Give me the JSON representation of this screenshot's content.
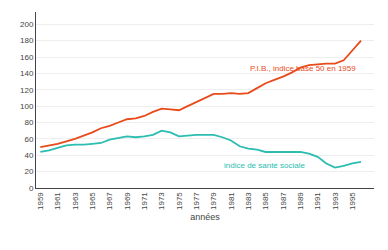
{
  "chart_data": {
    "type": "line",
    "x": [
      1959,
      1960,
      1961,
      1962,
      1963,
      1964,
      1965,
      1966,
      1967,
      1968,
      1969,
      1970,
      1971,
      1972,
      1973,
      1974,
      1975,
      1976,
      1977,
      1978,
      1979,
      1980,
      1981,
      1982,
      1983,
      1984,
      1985,
      1986,
      1987,
      1988,
      1989,
      1990,
      1991,
      1992,
      1993,
      1994,
      1995,
      1996
    ],
    "series": [
      {
        "color": "#e84a1a",
        "values": [
          50,
          52,
          54,
          57,
          60,
          64,
          68,
          73,
          76,
          80,
          84,
          85,
          88,
          93,
          97,
          96,
          95,
          100,
          105,
          110,
          115,
          115,
          116,
          115,
          116,
          122,
          128,
          132,
          136,
          141,
          147,
          150,
          151,
          152,
          152,
          156,
          168,
          180
        ]
      },
      {
        "color": "#2abdb0",
        "values": [
          44,
          46,
          49,
          52,
          53,
          53,
          54,
          55,
          59,
          61,
          63,
          62,
          63,
          65,
          70,
          68,
          63,
          64,
          65,
          65,
          65,
          62,
          58,
          51,
          48,
          47,
          44,
          44,
          44,
          44,
          44,
          42,
          38,
          30,
          25,
          27,
          30,
          32
        ]
      }
    ],
    "annotations": [
      {
        "text": "P.I.B., indice base 50 en 1959",
        "x": 1983,
        "y": 138,
        "color": "#e84a1a"
      },
      {
        "text": "indice de santé sociale",
        "x": 1980,
        "y": 35,
        "color": "#2abdb0"
      }
    ],
    "x_label": "années",
    "xlim": [
      1958.5,
      1997.5
    ],
    "xticks": [
      1959,
      1961,
      1963,
      1965,
      1967,
      1969,
      1971,
      1973,
      1975,
      1977,
      1979,
      1981,
      1983,
      1985,
      1987,
      1989,
      1991,
      1993,
      1995
    ],
    "ylim": [
      0,
      215
    ],
    "yticks": [
      0,
      20,
      40,
      60,
      80,
      100,
      120,
      140,
      160,
      180,
      200
    ],
    "grid": "y"
  }
}
